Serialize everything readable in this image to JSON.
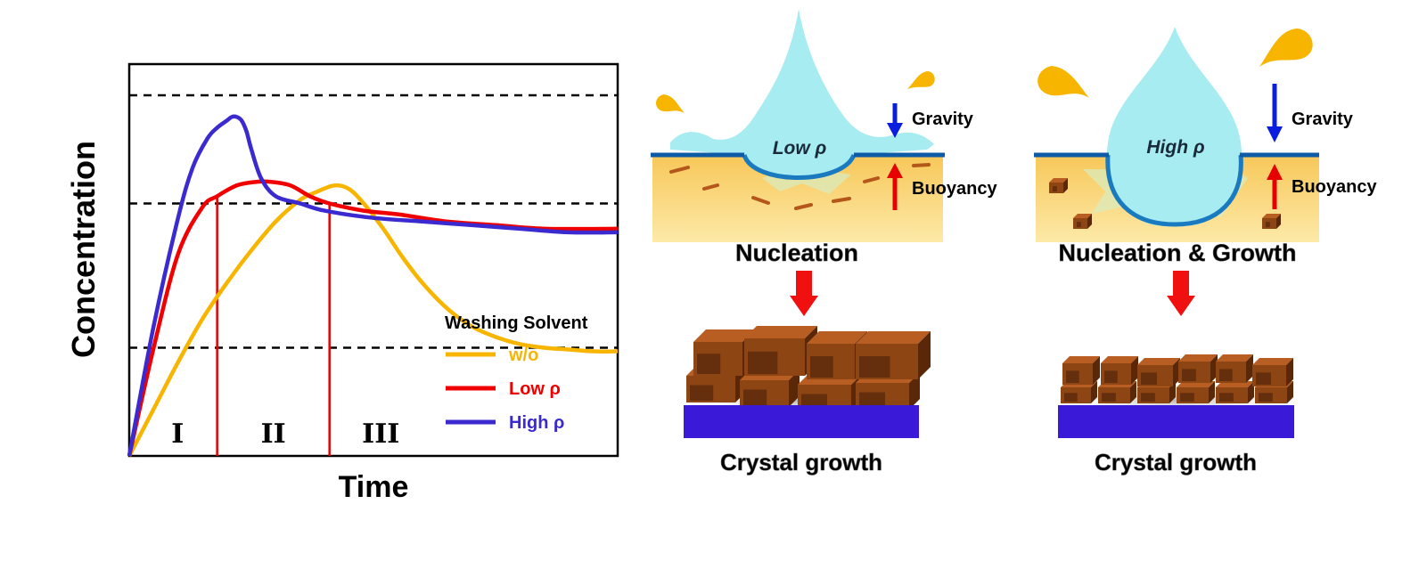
{
  "chart_data": {
    "type": "line",
    "title": "",
    "xlabel": "Time",
    "ylabel": "Concentration",
    "xlim": [
      0,
      100
    ],
    "ylim": [
      0,
      100
    ],
    "reference_lines_y": [
      30,
      70,
      100
    ],
    "phase_boundaries_x": [
      18,
      41
    ],
    "phase_labels": [
      "I",
      "II",
      "III"
    ],
    "legend": {
      "title": "Washing Solvent",
      "placement": "bottom-right"
    },
    "series": [
      {
        "name": "w/o",
        "color": "#f7b500",
        "x": [
          0,
          5,
          10,
          15,
          20,
          25,
          30,
          35,
          38,
          42,
          45,
          48,
          52,
          56,
          60,
          65,
          70,
          75,
          80,
          85,
          90,
          95,
          100
        ],
        "y": [
          0,
          13,
          26,
          38,
          48,
          57,
          65,
          71,
          73,
          75,
          74,
          70,
          63,
          55,
          48,
          41,
          36,
          33,
          31,
          30,
          29.5,
          29,
          29
        ]
      },
      {
        "name": "Low ρ",
        "color": "#f00000",
        "x": [
          0,
          5,
          10,
          15,
          18,
          22,
          26,
          29,
          33,
          37,
          41,
          48,
          55,
          65,
          75,
          85,
          100
        ],
        "y": [
          0,
          30,
          56,
          69,
          72,
          75,
          76,
          76,
          75,
          72,
          70,
          68,
          67,
          65,
          64,
          63,
          63
        ]
      },
      {
        "name": "High ρ",
        "color": "#3a2ad0",
        "x": [
          0,
          5,
          10,
          13,
          16,
          18,
          20,
          21,
          22,
          23,
          24,
          25,
          27,
          30,
          35,
          40,
          50,
          60,
          70,
          80,
          90,
          100
        ],
        "y": [
          0,
          36,
          66,
          80,
          88,
          91,
          93,
          94,
          94,
          93,
          90,
          85,
          77,
          72,
          70,
          68,
          66,
          65,
          64,
          63,
          62,
          62
        ]
      }
    ]
  },
  "diagram": {
    "low": {
      "drop_label": "Low ρ",
      "gravity_label": "Gravity",
      "buoyancy_label": "Buoyancy",
      "stage_label": "Nucleation",
      "result_label": "Crystal growth"
    },
    "high": {
      "drop_label": "High ρ",
      "gravity_label": "Gravity",
      "buoyancy_label": "Buoyancy",
      "stage_label": "Nucleation & Growth",
      "result_label": "Crystal growth"
    }
  },
  "colors": {
    "drop": "#a6ecf0",
    "drop_edge": "#1a7ac0",
    "film": "#fde18f",
    "surface": "#0d5aa7",
    "splash": "#f7b500",
    "gravity_arrow": "#0a1ee0",
    "buoyancy_arrow": "#e60000",
    "down_arrow": "#f01010",
    "substrate": "#3a1ad8",
    "crystal_top": "#b0521a",
    "crystal_front": "#6b2f0c"
  }
}
